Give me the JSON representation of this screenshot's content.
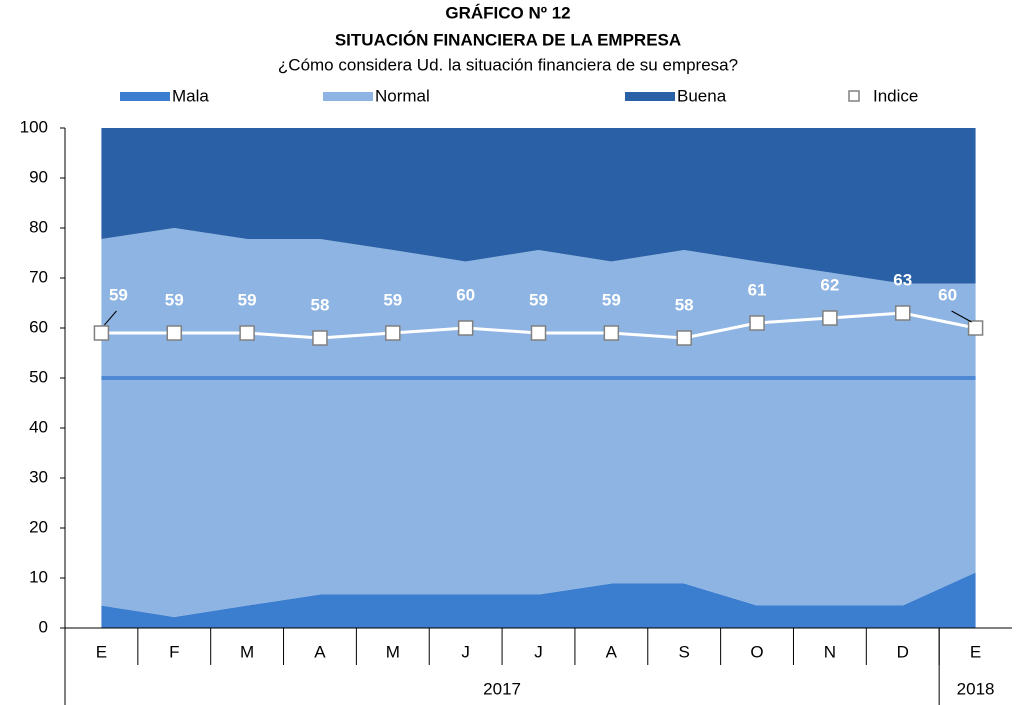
{
  "chart_data": {
    "type": "stacked_area",
    "title": "GRÁFICO Nº 12",
    "subtitle": "SITUACIÓN FINANCIERA DE LA EMPRESA",
    "question": "¿Cómo considera Ud. la situación financiera de su empresa?",
    "categories": [
      "E",
      "F",
      "M",
      "A",
      "M",
      "J",
      "J",
      "A",
      "S",
      "O",
      "N",
      "D",
      "E"
    ],
    "category_groups": [
      {
        "name": "2017",
        "count": 12
      },
      {
        "name": "2018",
        "count": 1
      }
    ],
    "series": [
      {
        "name": "Mala",
        "color": "#3b7dce",
        "values": [
          4.5,
          2.2,
          4.5,
          6.7,
          6.7,
          6.7,
          6.7,
          8.9,
          8.9,
          4.5,
          4.5,
          4.5,
          11.1
        ]
      },
      {
        "name": "Normal",
        "color": "#8db4e2",
        "values": [
          73.3,
          77.8,
          73.3,
          71.1,
          68.9,
          66.6,
          68.9,
          64.4,
          66.7,
          68.8,
          66.6,
          64.4,
          57.8
        ]
      },
      {
        "name": "Buena",
        "color": "#2a60a6",
        "values": [
          22.2,
          20,
          22.2,
          22.2,
          24.4,
          26.7,
          24.4,
          26.7,
          24.4,
          26.7,
          28.9,
          31.1,
          31.1
        ]
      }
    ],
    "index_series": {
      "name": "Indice",
      "color": "#ffffff",
      "values": [
        59,
        59,
        59,
        58,
        59,
        60,
        59,
        59,
        58,
        61,
        62,
        63,
        60
      ]
    },
    "reference_line": {
      "value": 50,
      "color": "#4f88d2"
    },
    "ylim": [
      0,
      100
    ],
    "yticks": [
      0,
      10,
      20,
      30,
      40,
      50,
      60,
      70,
      80,
      90,
      100
    ]
  }
}
